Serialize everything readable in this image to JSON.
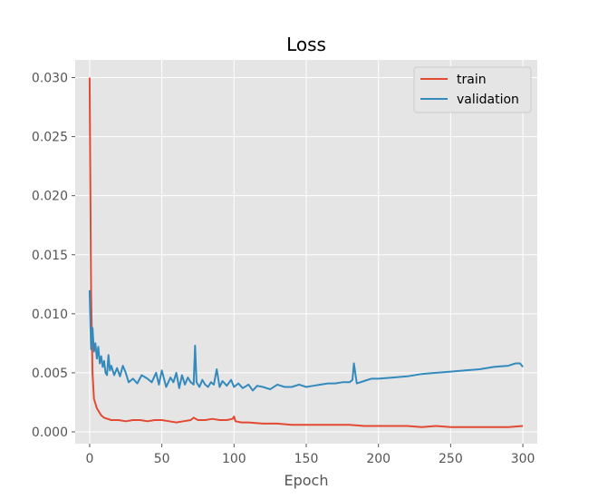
{
  "chart_data": {
    "type": "line",
    "title": "Loss",
    "xlabel": "Epoch",
    "ylabel": "",
    "xlim": [
      -10,
      310
    ],
    "ylim": [
      -0.001,
      0.0315
    ],
    "xticks": [
      0,
      50,
      100,
      150,
      200,
      250,
      300
    ],
    "yticks": [
      0.0,
      0.005,
      0.01,
      0.015,
      0.02,
      0.025,
      0.03
    ],
    "ytick_labels": [
      "0.000",
      "0.005",
      "0.010",
      "0.015",
      "0.020",
      "0.025",
      "0.030"
    ],
    "grid": true,
    "legend_position": "top-right",
    "series": [
      {
        "name": "train",
        "color": "#E24A33",
        "x": [
          0,
          1,
          2,
          3,
          5,
          8,
          10,
          15,
          20,
          25,
          30,
          35,
          40,
          45,
          50,
          55,
          60,
          65,
          70,
          72,
          75,
          80,
          85,
          90,
          95,
          99,
          100,
          101,
          105,
          110,
          120,
          130,
          140,
          150,
          160,
          170,
          180,
          190,
          200,
          210,
          220,
          230,
          240,
          250,
          260,
          270,
          280,
          290,
          300
        ],
        "y": [
          0.03,
          0.012,
          0.005,
          0.0028,
          0.002,
          0.0014,
          0.0012,
          0.001,
          0.001,
          0.0009,
          0.001,
          0.001,
          0.0009,
          0.001,
          0.001,
          0.0009,
          0.0008,
          0.0009,
          0.001,
          0.0012,
          0.001,
          0.001,
          0.0011,
          0.001,
          0.001,
          0.0011,
          0.0013,
          0.0009,
          0.0008,
          0.0008,
          0.0007,
          0.0007,
          0.0006,
          0.0006,
          0.0006,
          0.0006,
          0.0006,
          0.0005,
          0.0005,
          0.0005,
          0.0005,
          0.0004,
          0.0005,
          0.0004,
          0.0004,
          0.0004,
          0.0004,
          0.0004,
          0.0005
        ]
      },
      {
        "name": "validation",
        "color": "#348ABD",
        "x": [
          0,
          1,
          2,
          3,
          4,
          5,
          6,
          7,
          8,
          9,
          10,
          11,
          12,
          13,
          14,
          15,
          17,
          19,
          21,
          23,
          25,
          27,
          30,
          33,
          36,
          40,
          43,
          46,
          48,
          50,
          53,
          56,
          58,
          60,
          62,
          64,
          66,
          68,
          70,
          72,
          73,
          74,
          76,
          78,
          80,
          82,
          84,
          86,
          88,
          90,
          92,
          95,
          98,
          100,
          103,
          106,
          110,
          113,
          116,
          120,
          125,
          130,
          135,
          140,
          145,
          150,
          155,
          160,
          165,
          170,
          175,
          180,
          182,
          183,
          185,
          190,
          195,
          200,
          210,
          220,
          230,
          240,
          250,
          260,
          270,
          280,
          290,
          295,
          298,
          300
        ],
        "y": [
          0.012,
          0.007,
          0.0088,
          0.0068,
          0.0075,
          0.0062,
          0.0072,
          0.0058,
          0.0064,
          0.0055,
          0.006,
          0.005,
          0.0048,
          0.0065,
          0.0052,
          0.0056,
          0.0048,
          0.0054,
          0.0047,
          0.0056,
          0.005,
          0.0042,
          0.0045,
          0.0041,
          0.0048,
          0.0045,
          0.0042,
          0.005,
          0.004,
          0.0052,
          0.0038,
          0.0046,
          0.0042,
          0.005,
          0.0037,
          0.0048,
          0.004,
          0.0046,
          0.0042,
          0.004,
          0.0073,
          0.0042,
          0.0038,
          0.0044,
          0.004,
          0.0038,
          0.0042,
          0.004,
          0.0053,
          0.0038,
          0.0043,
          0.0039,
          0.0044,
          0.0038,
          0.0041,
          0.0037,
          0.004,
          0.0035,
          0.0039,
          0.0038,
          0.0036,
          0.004,
          0.0038,
          0.0038,
          0.004,
          0.0038,
          0.0039,
          0.004,
          0.0041,
          0.0041,
          0.0042,
          0.0042,
          0.0044,
          0.0058,
          0.0041,
          0.0043,
          0.0045,
          0.0045,
          0.0046,
          0.0047,
          0.0049,
          0.005,
          0.0051,
          0.0052,
          0.0053,
          0.0055,
          0.0056,
          0.0058,
          0.0058,
          0.0055
        ]
      }
    ]
  },
  "colors": {
    "axes_background": "#E5E5E5",
    "grid": "#FFFFFF",
    "tick_label": "#555555",
    "title": "#000000"
  }
}
